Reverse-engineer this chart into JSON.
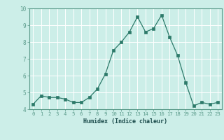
{
  "x": [
    0,
    1,
    2,
    3,
    4,
    5,
    6,
    7,
    8,
    9,
    10,
    11,
    12,
    13,
    14,
    15,
    16,
    17,
    18,
    19,
    20,
    21,
    22,
    23
  ],
  "y": [
    4.3,
    4.8,
    4.7,
    4.7,
    4.6,
    4.4,
    4.4,
    4.7,
    5.2,
    6.1,
    7.5,
    8.0,
    8.6,
    9.5,
    8.6,
    8.8,
    9.6,
    8.3,
    7.2,
    5.6,
    4.2,
    4.4,
    4.3,
    4.4
  ],
  "xlabel": "Humidex (Indice chaleur)",
  "ylim": [
    4.0,
    10.0
  ],
  "xlim": [
    -0.5,
    23.5
  ],
  "yticks": [
    4,
    5,
    6,
    7,
    8,
    9,
    10
  ],
  "xticks": [
    0,
    1,
    2,
    3,
    4,
    5,
    6,
    7,
    8,
    9,
    10,
    11,
    12,
    13,
    14,
    15,
    16,
    17,
    18,
    19,
    20,
    21,
    22,
    23
  ],
  "line_color": "#2d7a6a",
  "marker_color": "#2d7a6a",
  "bg_color": "#cceee8",
  "grid_color": "#b0d8d4",
  "axes_edge_color": "#5a9a8a",
  "tick_label_color": "#1a4a4a",
  "xlabel_color": "#1a4a4a",
  "xlabel_fontsize": 6.0,
  "tick_fontsize": 5.2
}
